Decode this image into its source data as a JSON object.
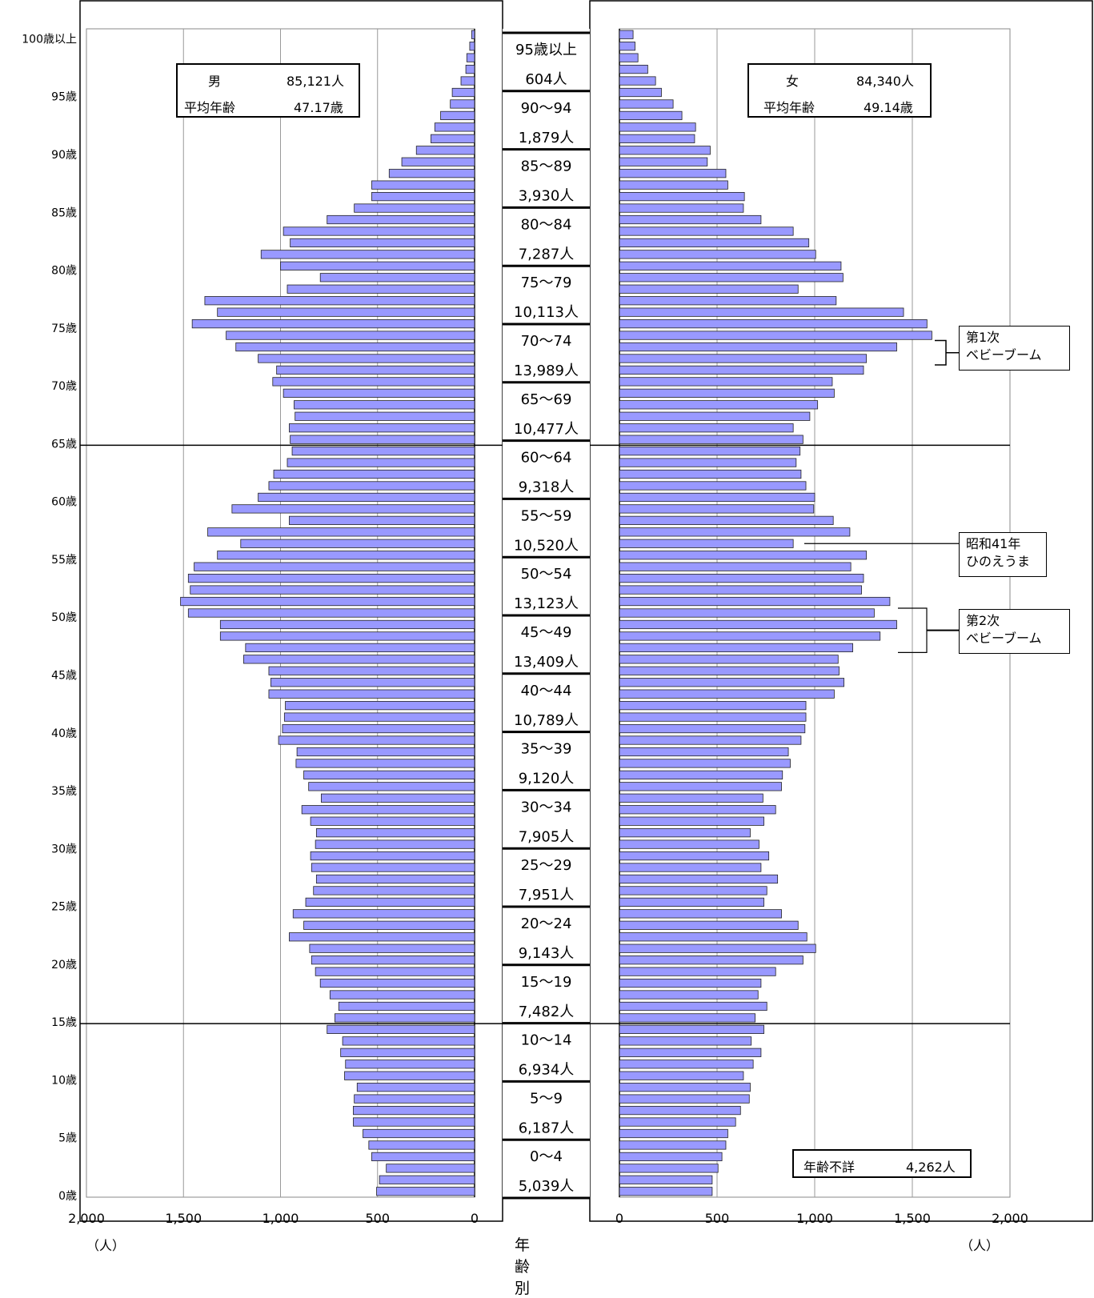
{
  "chart_data": {
    "type": "bar",
    "orientation": "horizontal-population-pyramid",
    "ages": [
      0,
      1,
      2,
      3,
      4,
      5,
      6,
      7,
      8,
      9,
      10,
      11,
      12,
      13,
      14,
      15,
      16,
      17,
      18,
      19,
      20,
      21,
      22,
      23,
      24,
      25,
      26,
      27,
      28,
      29,
      30,
      31,
      32,
      33,
      34,
      35,
      36,
      37,
      38,
      39,
      40,
      41,
      42,
      43,
      44,
      45,
      46,
      47,
      48,
      49,
      50,
      51,
      52,
      53,
      54,
      55,
      56,
      57,
      58,
      59,
      60,
      61,
      62,
      63,
      64,
      65,
      66,
      67,
      68,
      69,
      70,
      71,
      72,
      73,
      74,
      75,
      76,
      77,
      78,
      79,
      80,
      81,
      82,
      83,
      84,
      85,
      86,
      87,
      88,
      89,
      90,
      91,
      92,
      93,
      94,
      95,
      96,
      97,
      98,
      99,
      100
    ],
    "series": [
      {
        "name": "男",
        "values": [
          505,
          490,
          455,
          530,
          545,
          575,
          625,
          625,
          620,
          605,
          670,
          665,
          690,
          680,
          760,
          720,
          700,
          745,
          795,
          820,
          840,
          850,
          955,
          880,
          935,
          870,
          830,
          815,
          840,
          845,
          820,
          815,
          845,
          890,
          790,
          855,
          880,
          920,
          915,
          1010,
          990,
          980,
          975,
          1060,
          1050,
          1060,
          1190,
          1180,
          1310,
          1310,
          1475,
          1515,
          1465,
          1475,
          1445,
          1325,
          1205,
          1375,
          955,
          1250,
          1115,
          1060,
          1035,
          965,
          940,
          950,
          955,
          925,
          930,
          985,
          1040,
          1020,
          1115,
          1230,
          1280,
          1455,
          1325,
          1390,
          965,
          795,
          1000,
          1100,
          950,
          985,
          760,
          620,
          530,
          530,
          440,
          375,
          300,
          225,
          205,
          175,
          125,
          115,
          70,
          45,
          40,
          25,
          15,
          10
        ]
      },
      {
        "name": "女",
        "values": [
          475,
          475,
          505,
          525,
          545,
          555,
          595,
          620,
          665,
          670,
          635,
          685,
          725,
          675,
          740,
          695,
          755,
          710,
          725,
          800,
          940,
          1005,
          960,
          915,
          830,
          740,
          755,
          810,
          725,
          765,
          715,
          670,
          740,
          800,
          735,
          830,
          835,
          875,
          865,
          930,
          950,
          955,
          955,
          1100,
          1150,
          1125,
          1120,
          1195,
          1335,
          1420,
          1305,
          1385,
          1240,
          1250,
          1185,
          1265,
          890,
          1180,
          1095,
          995,
          1000,
          955,
          930,
          905,
          925,
          940,
          890,
          975,
          1015,
          1100,
          1090,
          1250,
          1265,
          1420,
          1600,
          1575,
          1455,
          1110,
          915,
          1145,
          1135,
          1005,
          970,
          890,
          725,
          635,
          640,
          555,
          545,
          450,
          465,
          385,
          390,
          320,
          275,
          215,
          185,
          145,
          95,
          80,
          70,
          60,
          90
        ]
      }
    ],
    "xlim": [
      0,
      2000
    ],
    "x_ticks": [
      "2,000",
      "1,500",
      "1,000",
      "500",
      "0"
    ],
    "x_ticks_right": [
      "0",
      "500",
      "1,000",
      "1,500",
      "2,000"
    ],
    "x_unit": "（人）",
    "y_tick_labels": [
      "0歳",
      "5歳",
      "10歳",
      "15歳",
      "20歳",
      "25歳",
      "30歳",
      "35歳",
      "40歳",
      "45歳",
      "50歳",
      "55歳",
      "60歳",
      "65歳",
      "70歳",
      "75歳",
      "80歳",
      "85歳",
      "90歳",
      "95歳",
      "100歳以上"
    ],
    "reference_lines_at_age": [
      15,
      65
    ],
    "bar_color": "#9999FF",
    "center_groups": [
      {
        "range": "95歳以上",
        "count": "604人"
      },
      {
        "range": "90～94",
        "count": "1,879人"
      },
      {
        "range": "85～89",
        "count": "3,930人"
      },
      {
        "range": "80～84",
        "count": "7,287人"
      },
      {
        "range": "75～79",
        "count": "10,113人"
      },
      {
        "range": "70～74",
        "count": "13,989人"
      },
      {
        "range": "65～69",
        "count": "10,477人"
      },
      {
        "range": "60～64",
        "count": "9,318人"
      },
      {
        "range": "55～59",
        "count": "10,520人"
      },
      {
        "range": "50～54",
        "count": "13,123人"
      },
      {
        "range": "45～49",
        "count": "13,409人"
      },
      {
        "range": "40～44",
        "count": "10,789人"
      },
      {
        "range": "35～39",
        "count": "9,120人"
      },
      {
        "range": "30～34",
        "count": "7,905人"
      },
      {
        "range": "25～29",
        "count": "7,951人"
      },
      {
        "range": "20～24",
        "count": "9,143人"
      },
      {
        "range": "15～19",
        "count": "7,482人"
      },
      {
        "range": "10～14",
        "count": "6,934人"
      },
      {
        "range": "5～9",
        "count": "6,187人"
      },
      {
        "range": "0～4",
        "count": "5,039人"
      }
    ],
    "center_title": "年齢別",
    "male_box": {
      "label": "男",
      "total": "85,121人",
      "avg_label": "平均年齢",
      "avg_value": "47.17歳"
    },
    "female_box": {
      "label": "女",
      "total": "84,340人",
      "avg_label": "平均年齢",
      "avg_value": "49.14歳"
    },
    "unknown_box": {
      "label": "年齢不詳",
      "value": "4,262人"
    },
    "annotations": [
      {
        "line1": "第1次",
        "line2": "ベビーブーム",
        "ages": [
          72,
          73
        ]
      },
      {
        "line1": "昭和41年",
        "line2": "ひのえうま",
        "ages": [
          56
        ]
      },
      {
        "line1": "第2次",
        "line2": "ベビーブーム",
        "ages": [
          47,
          50
        ]
      }
    ]
  }
}
